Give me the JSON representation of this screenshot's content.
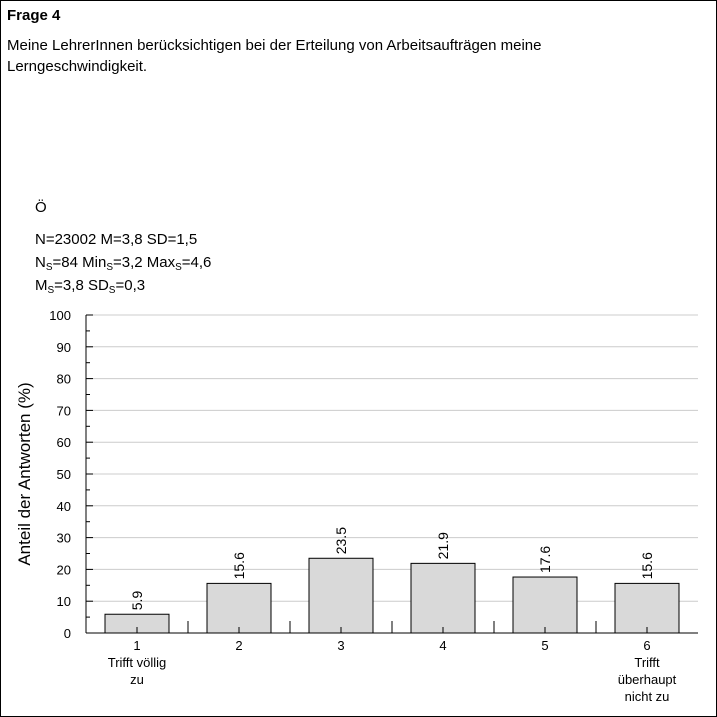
{
  "question": {
    "title": "Frage 4",
    "text_lines": [
      "Meine LehrerInnen berücksichtigen bei der Erteilung von Arbeitsaufträgen meine",
      "Lerngeschwindigkeit."
    ]
  },
  "stats": {
    "group": "Ö",
    "line1": "N=23002 M=3,8 SD=1,5",
    "ns_prefix": "N",
    "ns_sub": "S",
    "ns_val": "=84 Min",
    "min_sub": "S",
    "min_val": "=3,2 Max",
    "max_sub": "S",
    "max_val": "=4,6",
    "ms_prefix": "M",
    "ms_sub": "S",
    "ms_val": "=3,8 SD",
    "sd_sub": "S",
    "sd_val": "=0,3"
  },
  "chart_data": {
    "type": "bar",
    "ylabel": "Anteil der Antworten (%)",
    "ylim": [
      0,
      100
    ],
    "yticks": [
      0,
      10,
      20,
      30,
      40,
      50,
      60,
      70,
      80,
      90,
      100
    ],
    "categories": [
      "1",
      "2",
      "3",
      "4",
      "5",
      "6"
    ],
    "category_sublabels": [
      [
        "Trifft völlig",
        "zu"
      ],
      [],
      [],
      [],
      [],
      [
        "Trifft",
        "überhaupt",
        "nicht zu"
      ]
    ],
    "values": [
      5.9,
      15.6,
      23.5,
      21.9,
      17.6,
      15.6
    ],
    "value_labels": [
      "5.9",
      "15.6",
      "23.5",
      "21.9",
      "17.6",
      "15.6"
    ],
    "bar_color": "#d9d9d9",
    "grid": true,
    "grid_color": "#cccccc"
  }
}
